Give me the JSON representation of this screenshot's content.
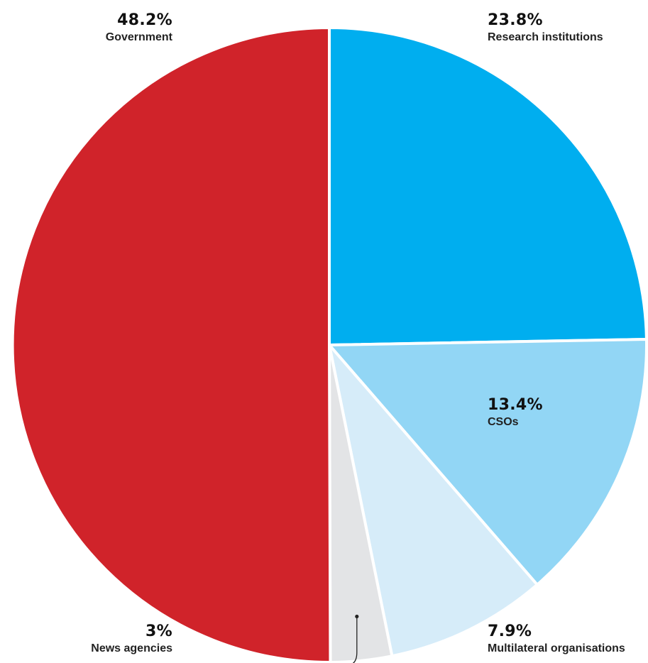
{
  "chart_data": {
    "type": "pie",
    "start_angle_deg": 0,
    "direction": "clockwise",
    "slices": [
      {
        "label": "Research institutions",
        "value": 23.8,
        "display": "23.8%",
        "color": "#00AEEF"
      },
      {
        "label": "CSOs",
        "value": 13.4,
        "display": "13.4%",
        "color": "#92D6F5"
      },
      {
        "label": "Multilateral organisations",
        "value": 7.9,
        "display": "7.9%",
        "color": "#D6ECF9"
      },
      {
        "label": "News agencies",
        "value": 3.0,
        "display": "3%",
        "color": "#E3E4E6"
      },
      {
        "label": "Government",
        "value": 48.2,
        "display": "48.2%",
        "color": "#D0232A"
      }
    ],
    "title": "",
    "legend": "none"
  }
}
